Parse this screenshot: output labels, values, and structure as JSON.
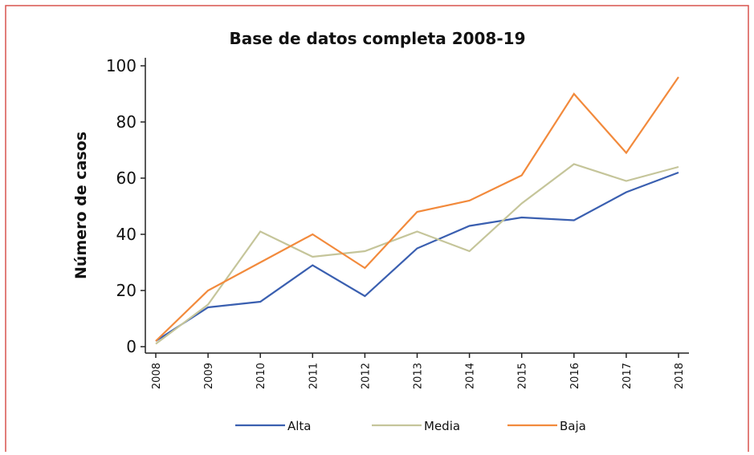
{
  "chart_data": {
    "type": "line",
    "title": "Base de datos completa 2008-19",
    "y_label": "Número de casos",
    "categories": [
      "2008",
      "2009",
      "2010",
      "2011",
      "2012",
      "2013",
      "2014",
      "2015",
      "2016",
      "2017",
      "2018"
    ],
    "series": [
      {
        "name": "Alta",
        "color": "#3a5fb0",
        "values": [
          2,
          14,
          16,
          29,
          18,
          35,
          43,
          46,
          45,
          55,
          62
        ]
      },
      {
        "name": "Media",
        "color": "#c5c59a",
        "values": [
          1,
          15,
          41,
          32,
          34,
          41,
          34,
          51,
          65,
          59,
          64
        ]
      },
      {
        "name": "Baja",
        "color": "#f28a3c",
        "values": [
          2,
          20,
          30,
          40,
          28,
          48,
          52,
          61,
          90,
          69,
          96
        ]
      }
    ],
    "ylim": [
      0,
      100
    ],
    "yticks": [
      0,
      20,
      40,
      60,
      80,
      100
    ],
    "grid": false,
    "legend": "bottom"
  }
}
